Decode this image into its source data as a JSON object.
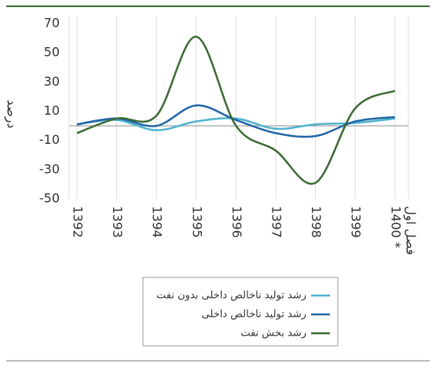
{
  "chart_data": {
    "type": "line",
    "y_label": "درصد",
    "categories": [
      "1392",
      "1393",
      "1394",
      "1395",
      "1396",
      "1397",
      "1398",
      "1399",
      "1400 *"
    ],
    "annotations": [
      "فصل اول"
    ],
    "series": [
      {
        "name": "رشد تولید ناخالص داخلی بدون نفت",
        "color": "#4fb3cf",
        "values": [
          1,
          4,
          -3,
          3,
          5,
          -2,
          1,
          2,
          5
        ]
      },
      {
        "name": "رشد تولید ناخالص داخلی",
        "color": "#2166a6",
        "values": [
          1,
          5,
          0,
          14,
          4,
          -5,
          -7,
          3,
          6
        ]
      },
      {
        "name": "رشد بخش نفت",
        "color": "#3b6a33",
        "values": [
          -5,
          5,
          7,
          61,
          0,
          -17,
          -39,
          12,
          24
        ]
      }
    ],
    "ylim": [
      -50,
      70
    ],
    "yticks": [
      70,
      50,
      30,
      10,
      -10,
      -30,
      -50
    ],
    "zero_line": true,
    "grid": "x",
    "smooth": true
  }
}
